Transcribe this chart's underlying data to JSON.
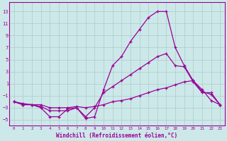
{
  "xlabel": "Windchill (Refroidissement éolien,°C)",
  "bg_color": "#cde8e8",
  "grid_color": "#aacccc",
  "line_color": "#990099",
  "xlim": [
    -0.5,
    23.5
  ],
  "ylim": [
    -6,
    14.5
  ],
  "yticks": [
    -5,
    -3,
    -1,
    1,
    3,
    5,
    7,
    9,
    11,
    13
  ],
  "xticks": [
    0,
    1,
    2,
    3,
    4,
    5,
    6,
    7,
    8,
    9,
    10,
    11,
    12,
    13,
    14,
    15,
    16,
    17,
    18,
    19,
    20,
    21,
    22,
    23
  ],
  "line1_x": [
    0,
    1,
    2,
    3,
    4,
    5,
    6,
    7,
    8,
    9,
    10,
    11,
    12,
    13,
    14,
    15,
    16,
    17,
    18,
    19,
    20,
    21,
    22,
    23
  ],
  "line1_y": [
    -2,
    -2.5,
    -2.5,
    -3,
    -4.5,
    -4.5,
    -3.2,
    -3,
    -4.8,
    -4.5,
    0,
    4,
    5.5,
    8,
    10,
    12,
    13,
    13,
    7,
    4,
    1.5,
    -0.3,
    -0.8,
    -2.5
  ],
  "line2_x": [
    0,
    1,
    2,
    3,
    4,
    5,
    6,
    7,
    8,
    9,
    10,
    11,
    12,
    13,
    14,
    15,
    16,
    17,
    18,
    19,
    20,
    21,
    22,
    23
  ],
  "line2_y": [
    -2,
    -2.5,
    -2.5,
    -2.8,
    -3.5,
    -3.5,
    -3.5,
    -3,
    -4.5,
    -3,
    -0.5,
    0.5,
    1.5,
    2.5,
    3.5,
    4.5,
    5.5,
    6,
    4,
    3.8,
    1.3,
    -0.5,
    -0.5,
    -2.5
  ],
  "line3_x": [
    0,
    1,
    2,
    3,
    4,
    5,
    6,
    7,
    8,
    9,
    10,
    11,
    12,
    13,
    14,
    15,
    16,
    17,
    18,
    19,
    20,
    21,
    22,
    23
  ],
  "line3_y": [
    -2,
    -2.3,
    -2.5,
    -2.5,
    -3,
    -3,
    -3,
    -2.8,
    -3,
    -2.8,
    -2.5,
    -2,
    -1.8,
    -1.5,
    -1,
    -0.5,
    0,
    0.3,
    0.8,
    1.3,
    1.5,
    0,
    -1.8,
    -2.5
  ]
}
